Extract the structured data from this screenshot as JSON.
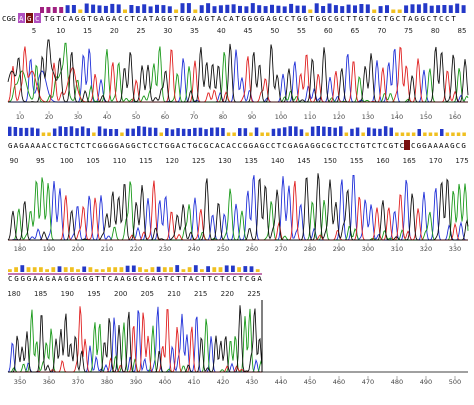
{
  "colors": {
    "A": "#1a9a1a",
    "C": "#2030d8",
    "G": "#111111",
    "T": "#e02020",
    "quality_high": "#2438c8",
    "quality_mid": "#f0c020",
    "quality_low": "#a02080",
    "highlight_purple": "#b050c0",
    "highlight_dark": "#7a1010",
    "axis": "#888888"
  },
  "panels": [
    {
      "id": "panel-1",
      "sequence": "TGTCAGGTGAGACCTCATAGGTGGAAGTACATGGGGAGCCTGGTGGCGCTTGTGCTGCTAGGCTCCT",
      "start_label": "CGG",
      "highlight_prefix": [
        "A",
        "G",
        "C"
      ],
      "positions": [
        "5",
        "10",
        "15",
        "20",
        "25",
        "30",
        "35",
        "40",
        "45",
        "50",
        "55",
        "60",
        "65",
        "70",
        "75",
        "80",
        "85"
      ],
      "axis_ticks": [
        "10",
        "20",
        "30",
        "40",
        "50",
        "60",
        "70",
        "80",
        "90",
        "100",
        "110",
        "120",
        "130",
        "140",
        "150",
        "160"
      ]
    },
    {
      "id": "panel-2",
      "sequence": "GAGAAAACCTGCTCTCGGGGAGGCTCCTGGACTGCGCACACCGGAGCCTCGAGAGGCGCTCCTGTCTCGTCACGGAAAAGCG",
      "positions": [
        "90",
        "95",
        "100",
        "105",
        "110",
        "115",
        "120",
        "125",
        "130",
        "135",
        "140",
        "145",
        "150",
        "155",
        "160",
        "165",
        "170",
        "175"
      ],
      "axis_ticks": [
        "180",
        "190",
        "200",
        "210",
        "220",
        "230",
        "240",
        "250",
        "260",
        "270",
        "280",
        "290",
        "300",
        "310",
        "320",
        "330"
      ]
    },
    {
      "id": "panel-3",
      "sequence": "CGGGAAGAAGGGGGTTCAAGGCGAGTCTTACTTCTCCTCGA",
      "positions": [
        "180",
        "185",
        "190",
        "195",
        "200",
        "205",
        "210",
        "215",
        "220",
        "225"
      ],
      "axis_ticks": [
        "350",
        "360",
        "370",
        "380",
        "390",
        "400",
        "410",
        "420",
        "430",
        "440",
        "450",
        "460",
        "470",
        "480",
        "490",
        "500"
      ]
    }
  ]
}
